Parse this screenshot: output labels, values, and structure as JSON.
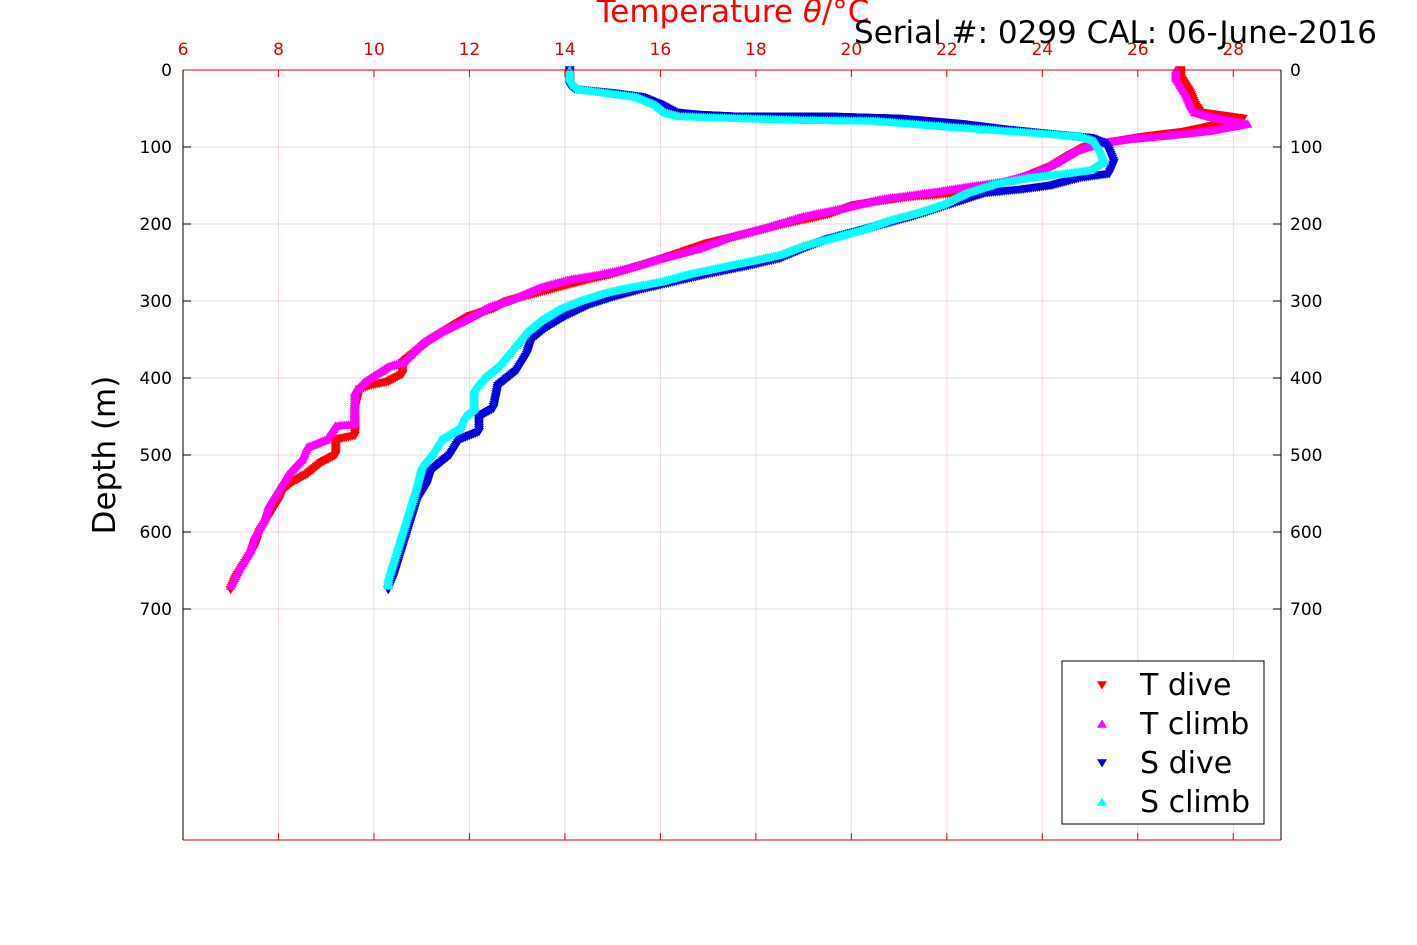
{
  "chart_data": {
    "type": "scatter",
    "title": "Serial #: 0299 CAL: 06-June-2016",
    "xlabel_prefix": "Temperature ",
    "xlabel_symbol": "θ",
    "xlabel_suffix": "/°C",
    "ylabel": "Depth (m)",
    "xlim": [
      6,
      29
    ],
    "ylim": [
      0,
      1000
    ],
    "y_reversed": true,
    "x_axis_position": "top",
    "x_ticks": [
      6,
      8,
      10,
      12,
      14,
      16,
      18,
      20,
      22,
      24,
      26,
      28
    ],
    "y_ticks": [
      0,
      100,
      200,
      300,
      400,
      500,
      600,
      700
    ],
    "grid": true,
    "legend_position": "bottom-right",
    "series": [
      {
        "name": "T dive",
        "color": "#ff0000",
        "marker": "triangle-down",
        "points": [
          [
            26.9,
            0
          ],
          [
            26.9,
            10
          ],
          [
            27.0,
            20
          ],
          [
            27.1,
            30
          ],
          [
            27.2,
            45
          ],
          [
            27.3,
            55
          ],
          [
            28.2,
            63
          ],
          [
            27.6,
            72
          ],
          [
            27.0,
            80
          ],
          [
            26.2,
            86
          ],
          [
            25.5,
            93
          ],
          [
            24.9,
            100
          ],
          [
            24.6,
            110
          ],
          [
            24.2,
            125
          ],
          [
            23.6,
            140
          ],
          [
            23.0,
            150
          ],
          [
            22.2,
            160
          ],
          [
            21.2,
            165
          ],
          [
            20.1,
            175
          ],
          [
            19.5,
            188
          ],
          [
            18.6,
            200
          ],
          [
            17.8,
            213
          ],
          [
            17.0,
            225
          ],
          [
            16.3,
            240
          ],
          [
            15.7,
            252
          ],
          [
            15.0,
            265
          ],
          [
            14.5,
            272
          ],
          [
            14.0,
            280
          ],
          [
            13.4,
            290
          ],
          [
            12.8,
            300
          ],
          [
            12.5,
            310
          ],
          [
            12.0,
            320
          ],
          [
            11.6,
            335
          ],
          [
            11.2,
            350
          ],
          [
            10.9,
            365
          ],
          [
            10.6,
            380
          ],
          [
            10.6,
            395
          ],
          [
            10.3,
            405
          ],
          [
            9.9,
            410
          ],
          [
            9.7,
            415
          ],
          [
            9.6,
            440
          ],
          [
            9.6,
            475
          ],
          [
            9.2,
            480
          ],
          [
            9.2,
            500
          ],
          [
            8.9,
            510
          ],
          [
            8.6,
            525
          ],
          [
            8.3,
            535
          ],
          [
            8.1,
            545
          ],
          [
            8.0,
            560
          ],
          [
            7.8,
            580
          ],
          [
            7.6,
            600
          ],
          [
            7.5,
            620
          ],
          [
            7.3,
            640
          ],
          [
            7.1,
            660
          ],
          [
            7.0,
            675
          ]
        ]
      },
      {
        "name": "T climb",
        "color": "#ff00ff",
        "marker": "triangle-up",
        "points": [
          [
            26.8,
            0
          ],
          [
            26.8,
            10
          ],
          [
            26.9,
            20
          ],
          [
            27.0,
            30
          ],
          [
            27.1,
            45
          ],
          [
            27.2,
            55
          ],
          [
            27.6,
            62
          ],
          [
            28.3,
            70
          ],
          [
            27.4,
            80
          ],
          [
            26.5,
            86
          ],
          [
            25.8,
            90
          ],
          [
            25.2,
            95
          ],
          [
            24.7,
            105
          ],
          [
            24.3,
            120
          ],
          [
            23.8,
            135
          ],
          [
            23.2,
            145
          ],
          [
            22.4,
            152
          ],
          [
            21.8,
            158
          ],
          [
            20.6,
            168
          ],
          [
            19.8,
            180
          ],
          [
            19.0,
            190
          ],
          [
            18.2,
            205
          ],
          [
            17.4,
            218
          ],
          [
            16.8,
            232
          ],
          [
            16.0,
            245
          ],
          [
            15.3,
            258
          ],
          [
            14.7,
            266
          ],
          [
            14.1,
            272
          ],
          [
            13.5,
            282
          ],
          [
            13.0,
            295
          ],
          [
            12.8,
            300
          ],
          [
            12.4,
            308
          ],
          [
            11.9,
            325
          ],
          [
            11.4,
            340
          ],
          [
            11.0,
            355
          ],
          [
            10.6,
            380
          ],
          [
            10.3,
            385
          ],
          [
            9.8,
            405
          ],
          [
            9.6,
            418
          ],
          [
            9.6,
            440
          ],
          [
            9.6,
            460
          ],
          [
            9.2,
            462
          ],
          [
            9.0,
            480
          ],
          [
            8.6,
            490
          ],
          [
            8.5,
            505
          ],
          [
            8.2,
            525
          ],
          [
            8.0,
            545
          ],
          [
            7.8,
            565
          ],
          [
            7.7,
            585
          ],
          [
            7.5,
            605
          ],
          [
            7.4,
            625
          ],
          [
            7.2,
            645
          ],
          [
            7.0,
            670
          ]
        ]
      },
      {
        "name": "S dive",
        "color": "#0000dd",
        "marker": "triangle-down",
        "points": [
          [
            14.1,
            0
          ],
          [
            14.1,
            10
          ],
          [
            14.1,
            20
          ],
          [
            14.2,
            25
          ],
          [
            15.0,
            30
          ],
          [
            15.6,
            35
          ],
          [
            16.0,
            45
          ],
          [
            16.3,
            55
          ],
          [
            16.8,
            58
          ],
          [
            17.5,
            60
          ],
          [
            19.4,
            60
          ],
          [
            21.0,
            63
          ],
          [
            22.3,
            70
          ],
          [
            23.2,
            77
          ],
          [
            24.0,
            82
          ],
          [
            25.0,
            88
          ],
          [
            25.3,
            95
          ],
          [
            25.4,
            105
          ],
          [
            25.5,
            120
          ],
          [
            25.4,
            135
          ],
          [
            24.8,
            140
          ],
          [
            24.2,
            150
          ],
          [
            23.6,
            155
          ],
          [
            22.8,
            160
          ],
          [
            22.3,
            170
          ],
          [
            21.8,
            180
          ],
          [
            21.3,
            190
          ],
          [
            20.7,
            200
          ],
          [
            20.1,
            210
          ],
          [
            19.5,
            220
          ],
          [
            19.0,
            232
          ],
          [
            18.5,
            245
          ],
          [
            17.8,
            255
          ],
          [
            17.0,
            265
          ],
          [
            16.3,
            275
          ],
          [
            15.6,
            285
          ],
          [
            15.0,
            295
          ],
          [
            14.5,
            305
          ],
          [
            14.0,
            320
          ],
          [
            13.6,
            335
          ],
          [
            13.3,
            350
          ],
          [
            13.2,
            370
          ],
          [
            13.0,
            390
          ],
          [
            12.8,
            400
          ],
          [
            12.6,
            410
          ],
          [
            12.5,
            440
          ],
          [
            12.2,
            450
          ],
          [
            12.2,
            470
          ],
          [
            11.8,
            480
          ],
          [
            11.6,
            500
          ],
          [
            11.2,
            520
          ],
          [
            11.1,
            540
          ],
          [
            10.9,
            560
          ],
          [
            10.8,
            580
          ],
          [
            10.7,
            600
          ],
          [
            10.6,
            620
          ],
          [
            10.5,
            640
          ],
          [
            10.4,
            660
          ],
          [
            10.3,
            675
          ]
        ]
      },
      {
        "name": "S climb",
        "color": "#00ffff",
        "marker": "triangle-up",
        "points": [
          [
            14.1,
            0
          ],
          [
            14.1,
            10
          ],
          [
            14.2,
            20
          ],
          [
            14.3,
            25
          ],
          [
            14.9,
            30
          ],
          [
            15.5,
            35
          ],
          [
            15.9,
            45
          ],
          [
            16.1,
            55
          ],
          [
            16.4,
            60
          ],
          [
            17.3,
            62
          ],
          [
            19.0,
            65
          ],
          [
            20.5,
            66
          ],
          [
            22.1,
            74
          ],
          [
            23.5,
            80
          ],
          [
            24.8,
            86
          ],
          [
            25.1,
            92
          ],
          [
            25.2,
            102
          ],
          [
            25.3,
            118
          ],
          [
            25.0,
            130
          ],
          [
            24.4,
            135
          ],
          [
            23.7,
            140
          ],
          [
            23.0,
            148
          ],
          [
            22.4,
            160
          ],
          [
            21.9,
            175
          ],
          [
            21.4,
            185
          ],
          [
            20.8,
            195
          ],
          [
            20.2,
            208
          ],
          [
            19.6,
            218
          ],
          [
            19.0,
            228
          ],
          [
            18.5,
            240
          ],
          [
            17.9,
            248
          ],
          [
            17.2,
            257
          ],
          [
            16.6,
            265
          ],
          [
            16.0,
            275
          ],
          [
            15.3,
            283
          ],
          [
            14.8,
            290
          ],
          [
            14.3,
            300
          ],
          [
            13.9,
            310
          ],
          [
            13.5,
            325
          ],
          [
            13.2,
            340
          ],
          [
            13.0,
            355
          ],
          [
            12.8,
            370
          ],
          [
            12.6,
            385
          ],
          [
            12.3,
            400
          ],
          [
            12.1,
            415
          ],
          [
            12.1,
            440
          ],
          [
            11.9,
            450
          ],
          [
            11.8,
            465
          ],
          [
            11.4,
            480
          ],
          [
            11.2,
            500
          ],
          [
            11.0,
            515
          ],
          [
            10.9,
            540
          ],
          [
            10.8,
            560
          ],
          [
            10.7,
            580
          ],
          [
            10.6,
            600
          ],
          [
            10.5,
            620
          ],
          [
            10.4,
            640
          ],
          [
            10.3,
            660
          ],
          [
            10.3,
            670
          ]
        ]
      }
    ]
  }
}
